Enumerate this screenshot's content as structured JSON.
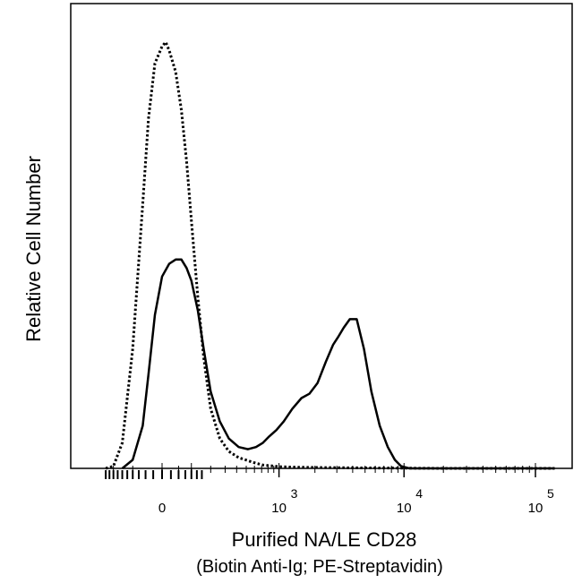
{
  "chart_data": {
    "type": "line",
    "title": "",
    "xlabel": "Purified NA/LE CD28",
    "xlabel_sub": "(Biotin Anti-Ig; PE-Streptavidin)",
    "ylabel": "Relative Cell Number",
    "xscale": "biexponential",
    "xlim": [
      -300,
      150000
    ],
    "ylim": [
      0,
      1
    ],
    "y_ticks_shown": false,
    "grid": false,
    "legend": "none",
    "x_tick_labels": [
      {
        "base": "0",
        "exp": "",
        "value": 0
      },
      {
        "base": "10",
        "exp": "3",
        "value": 1000
      },
      {
        "base": "10",
        "exp": "4",
        "value": 10000
      },
      {
        "base": "10",
        "exp": "5",
        "value": 100000
      }
    ],
    "series": [
      {
        "style": "solid",
        "color": "#000000",
        "x": [
          -150,
          -100,
          -60,
          -40,
          -20,
          0,
          20,
          40,
          60,
          80,
          100,
          130,
          160,
          200,
          260,
          330,
          420,
          520,
          620,
          720,
          820,
          950,
          1100,
          1300,
          1550,
          1800,
          2100,
          2450,
          2800,
          3100,
          3400,
          3800,
          4300,
          4900,
          5600,
          6500,
          7500,
          8500,
          9500,
          11000,
          15000,
          30000,
          60000,
          100000,
          140000
        ],
        "y": [
          0.0,
          0.02,
          0.1,
          0.22,
          0.36,
          0.45,
          0.48,
          0.49,
          0.49,
          0.47,
          0.44,
          0.37,
          0.28,
          0.18,
          0.11,
          0.07,
          0.05,
          0.045,
          0.05,
          0.06,
          0.075,
          0.09,
          0.11,
          0.14,
          0.165,
          0.175,
          0.2,
          0.25,
          0.29,
          0.31,
          0.33,
          0.35,
          0.35,
          0.28,
          0.18,
          0.1,
          0.05,
          0.02,
          0.005,
          0.0,
          0.0,
          0.0,
          0.0,
          0.0,
          0.0
        ]
      },
      {
        "style": "dotted",
        "color": "#000000",
        "x": [
          -250,
          -200,
          -150,
          -100,
          -60,
          -40,
          -20,
          0,
          10,
          20,
          40,
          60,
          80,
          100,
          130,
          160,
          200,
          260,
          330,
          420,
          520,
          620,
          720,
          850,
          1000,
          1300,
          2000,
          5000,
          20000,
          100000,
          140000
        ],
        "y": [
          0.0,
          0.005,
          0.06,
          0.28,
          0.62,
          0.82,
          0.95,
          0.99,
          1.0,
          0.98,
          0.93,
          0.84,
          0.72,
          0.58,
          0.4,
          0.26,
          0.14,
          0.07,
          0.04,
          0.025,
          0.018,
          0.012,
          0.008,
          0.006,
          0.004,
          0.003,
          0.002,
          0.001,
          0.0,
          0.0,
          0.0
        ]
      }
    ]
  }
}
